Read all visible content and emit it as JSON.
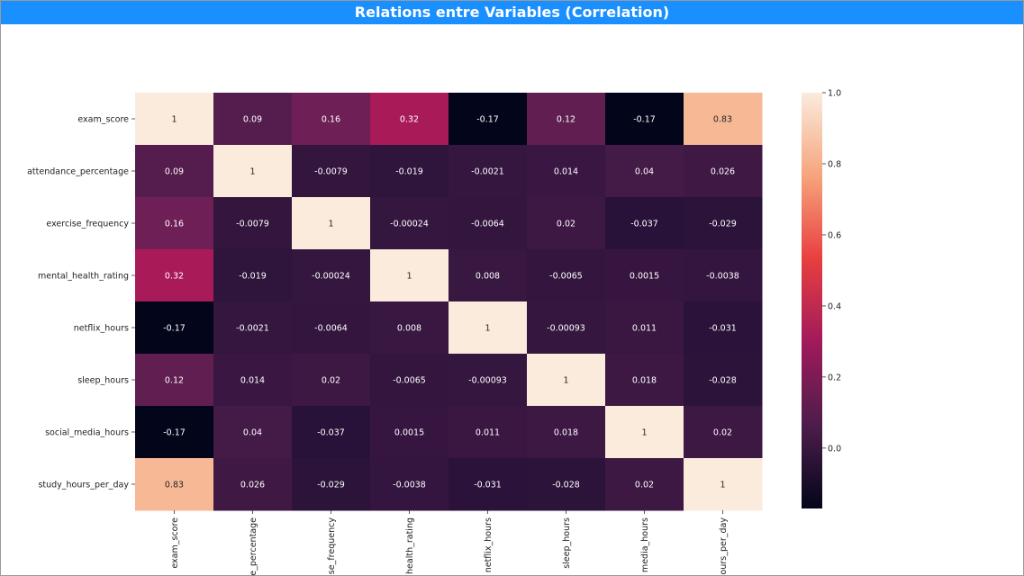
{
  "title": "Relations entre Variables (Correlation)",
  "chart_data": {
    "type": "heatmap",
    "title": "",
    "row_labels": [
      "exam_score",
      "attendance_percentage",
      "exercise_frequency",
      "mental_health_rating",
      "netflix_hours",
      "sleep_hours",
      "social_media_hours",
      "study_hours_per_day"
    ],
    "col_labels_visible": [
      "exam_score",
      "e_percentage",
      "se_frequency",
      "health_rating",
      "netflix_hours",
      "sleep_hours",
      "media_hours",
      "ours_per_day"
    ],
    "values": [
      [
        1,
        0.09,
        0.16,
        0.32,
        -0.17,
        0.12,
        -0.17,
        0.83
      ],
      [
        0.09,
        1,
        -0.0079,
        -0.019,
        -0.0021,
        0.014,
        0.04,
        0.026
      ],
      [
        0.16,
        -0.0079,
        1,
        -0.00024,
        -0.0064,
        0.02,
        -0.037,
        -0.029
      ],
      [
        0.32,
        -0.019,
        -0.00024,
        1,
        0.008,
        -0.0065,
        0.0015,
        -0.0038
      ],
      [
        -0.17,
        -0.0021,
        -0.0064,
        0.008,
        1,
        -0.00093,
        0.011,
        -0.031
      ],
      [
        0.12,
        0.014,
        0.02,
        -0.0065,
        -0.00093,
        1,
        0.018,
        -0.028
      ],
      [
        -0.17,
        0.04,
        -0.037,
        0.0015,
        0.011,
        0.018,
        1,
        0.02
      ],
      [
        0.83,
        0.026,
        -0.029,
        -0.0038,
        -0.031,
        -0.028,
        0.02,
        1
      ]
    ],
    "colorbar": {
      "min": -0.17,
      "max": 1.0,
      "ticks": [
        "1.0",
        "0.8",
        "0.6",
        "0.4",
        "0.2",
        "0.0"
      ],
      "colormap": "rocket"
    }
  }
}
